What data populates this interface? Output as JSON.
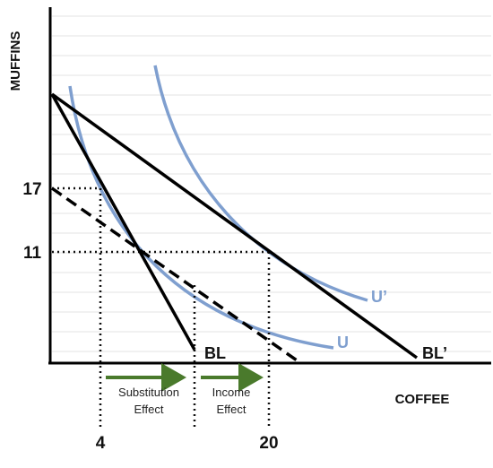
{
  "y_axis": {
    "label": "MUFFINS",
    "ticks": [
      "17",
      "11"
    ]
  },
  "x_axis": {
    "label": "COFFEE",
    "ticks": [
      "4",
      "20"
    ]
  },
  "budget_lines": {
    "original": "BL",
    "new": "BL’"
  },
  "indifference_curves": {
    "original": "U",
    "new": "U’"
  },
  "effects": {
    "substitution": [
      "Substitution",
      "Effect"
    ],
    "income": [
      "Income",
      "Effect"
    ]
  },
  "colors": {
    "curve": "#7f9fcf",
    "arrow": "#4a7a2c",
    "line": "#000000",
    "grid": "#e3e3e3"
  }
}
